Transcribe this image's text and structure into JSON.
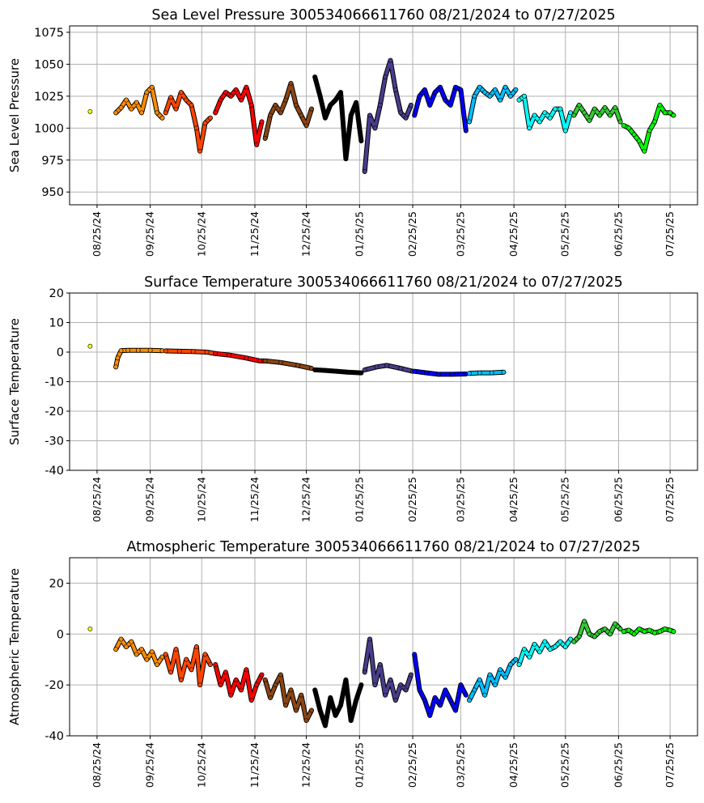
{
  "chart_data": [
    {
      "type": "scatter",
      "title": "Sea Level Pressure 300534066611760  08/21/2024 to 07/27/2025",
      "xlabel": "",
      "ylabel": "Sea Level Pressure",
      "xlim": [
        "2024-08-09",
        "2025-08-10"
      ],
      "ylim": [
        940,
        1080
      ],
      "yticks": [
        950,
        975,
        1000,
        1025,
        1050,
        1075
      ],
      "xticks": [
        "08/25/24",
        "09/25/24",
        "10/25/24",
        "11/25/24",
        "12/25/24",
        "01/25/25",
        "02/25/25",
        "03/25/25",
        "04/25/25",
        "05/25/25",
        "06/25/25",
        "07/25/25"
      ],
      "xtick_dates": [
        "2024-08-25",
        "2024-09-25",
        "2024-10-25",
        "2024-11-25",
        "2024-12-25",
        "2025-01-25",
        "2025-02-25",
        "2025-03-25",
        "2025-04-25",
        "2025-05-25",
        "2025-06-25",
        "2025-07-25"
      ],
      "grid": true,
      "series": [
        {
          "color": "#ffff00",
          "x": [
            "2024-08-21"
          ],
          "y": [
            1013
          ]
        },
        {
          "color": "#ff8c00",
          "x": [
            "2024-09-05",
            "2024-09-08",
            "2024-09-11",
            "2024-09-14",
            "2024-09-17",
            "2024-09-20",
            "2024-09-23",
            "2024-09-26",
            "2024-09-29",
            "2024-10-02"
          ],
          "y": [
            1012,
            1016,
            1022,
            1015,
            1020,
            1012,
            1028,
            1032,
            1012,
            1008
          ]
        },
        {
          "color": "#ff4500",
          "x": [
            "2024-10-04",
            "2024-10-07",
            "2024-10-10",
            "2024-10-13",
            "2024-10-16",
            "2024-10-19",
            "2024-10-22",
            "2024-10-24",
            "2024-10-27",
            "2024-10-30"
          ],
          "y": [
            1012,
            1024,
            1015,
            1028,
            1022,
            1018,
            1000,
            982,
            1004,
            1008
          ]
        },
        {
          "color": "#ff0000",
          "x": [
            "2024-11-02",
            "2024-11-05",
            "2024-11-08",
            "2024-11-11",
            "2024-11-14",
            "2024-11-17",
            "2024-11-20",
            "2024-11-23",
            "2024-11-26",
            "2024-11-29"
          ],
          "y": [
            1012,
            1022,
            1028,
            1025,
            1030,
            1022,
            1032,
            1018,
            987,
            1005
          ]
        },
        {
          "color": "#8b4513",
          "x": [
            "2024-12-01",
            "2024-12-04",
            "2024-12-07",
            "2024-12-10",
            "2024-12-13",
            "2024-12-16",
            "2024-12-19",
            "2024-12-22",
            "2024-12-25",
            "2024-12-28"
          ],
          "y": [
            992,
            1010,
            1018,
            1012,
            1022,
            1035,
            1018,
            1010,
            1002,
            1015
          ]
        },
        {
          "color": "#000000",
          "x": [
            "2024-12-30",
            "2025-01-02",
            "2025-01-05",
            "2025-01-08",
            "2025-01-11",
            "2025-01-14",
            "2025-01-17",
            "2025-01-20",
            "2025-01-23",
            "2025-01-26"
          ],
          "y": [
            1040,
            1025,
            1008,
            1018,
            1022,
            1028,
            976,
            1010,
            1020,
            990
          ]
        },
        {
          "color": "#483d8b",
          "x": [
            "2025-01-28",
            "2025-01-31",
            "2025-02-03",
            "2025-02-06",
            "2025-02-09",
            "2025-02-12",
            "2025-02-15",
            "2025-02-18",
            "2025-02-21",
            "2025-02-24"
          ],
          "y": [
            966,
            1010,
            1000,
            1018,
            1040,
            1053,
            1030,
            1012,
            1008,
            1018
          ]
        },
        {
          "color": "#0000ff",
          "x": [
            "2025-02-26",
            "2025-03-01",
            "2025-03-04",
            "2025-03-07",
            "2025-03-10",
            "2025-03-13",
            "2025-03-16",
            "2025-03-19",
            "2025-03-22",
            "2025-03-25",
            "2025-03-28"
          ],
          "y": [
            1010,
            1025,
            1030,
            1018,
            1028,
            1032,
            1022,
            1018,
            1032,
            1030,
            998
          ]
        },
        {
          "color": "#00bfff",
          "x": [
            "2025-03-30",
            "2025-04-02",
            "2025-04-05",
            "2025-04-08",
            "2025-04-11",
            "2025-04-14",
            "2025-04-17",
            "2025-04-20",
            "2025-04-23",
            "2025-04-26"
          ],
          "y": [
            1005,
            1025,
            1032,
            1028,
            1025,
            1030,
            1022,
            1032,
            1025,
            1030
          ]
        },
        {
          "color": "#00ffff",
          "x": [
            "2025-04-28",
            "2025-05-01",
            "2025-05-04",
            "2025-05-07",
            "2025-05-10",
            "2025-05-13",
            "2025-05-16",
            "2025-05-19",
            "2025-05-22",
            "2025-05-25",
            "2025-05-28"
          ],
          "y": [
            1022,
            1025,
            1000,
            1010,
            1005,
            1012,
            1008,
            1015,
            1015,
            998,
            1012
          ]
        },
        {
          "color": "#32cd32",
          "x": [
            "2025-05-30",
            "2025-06-02",
            "2025-06-05",
            "2025-06-08",
            "2025-06-11",
            "2025-06-14",
            "2025-06-17",
            "2025-06-20",
            "2025-06-23",
            "2025-06-26"
          ],
          "y": [
            1010,
            1018,
            1012,
            1006,
            1015,
            1010,
            1016,
            1010,
            1016,
            1005
          ]
        },
        {
          "color": "#00ff00",
          "x": [
            "2025-06-28",
            "2025-07-01",
            "2025-07-04",
            "2025-07-07",
            "2025-07-10",
            "2025-07-13",
            "2025-07-16",
            "2025-07-19",
            "2025-07-22",
            "2025-07-25",
            "2025-07-27"
          ],
          "y": [
            1002,
            1000,
            995,
            990,
            982,
            998,
            1005,
            1018,
            1012,
            1012,
            1010
          ]
        }
      ]
    },
    {
      "type": "scatter",
      "title": "Surface Temperature 300534066611760  08/21/2024 to 07/27/2025",
      "xlabel": "",
      "ylabel": "Surface Temperature",
      "xlim": [
        "2024-08-09",
        "2025-08-10"
      ],
      "ylim": [
        -40,
        20
      ],
      "yticks": [
        -40,
        -30,
        -20,
        -10,
        0,
        10,
        20
      ],
      "xticks": [
        "08/25/24",
        "09/25/24",
        "10/25/24",
        "11/25/24",
        "12/25/24",
        "01/25/25",
        "02/25/25",
        "03/25/25",
        "04/25/25",
        "05/25/25",
        "06/25/25",
        "07/25/25"
      ],
      "xtick_dates": [
        "2024-08-25",
        "2024-09-25",
        "2024-10-25",
        "2024-11-25",
        "2024-12-25",
        "2025-01-25",
        "2025-02-25",
        "2025-03-25",
        "2025-04-25",
        "2025-05-25",
        "2025-06-25",
        "2025-07-25"
      ],
      "grid": true,
      "series": [
        {
          "color": "#ffff00",
          "x": [
            "2024-08-21"
          ],
          "y": [
            2
          ]
        },
        {
          "color": "#ff8c00",
          "x": [
            "2024-09-05",
            "2024-09-06",
            "2024-09-08",
            "2024-09-12",
            "2024-09-18",
            "2024-09-25",
            "2024-10-02"
          ],
          "y": [
            -5,
            -2,
            0.5,
            0.6,
            0.6,
            0.6,
            0.5
          ]
        },
        {
          "color": "#ff4500",
          "x": [
            "2024-10-04",
            "2024-10-12",
            "2024-10-20",
            "2024-10-28",
            "2024-11-02"
          ],
          "y": [
            0.4,
            0.3,
            0.2,
            0,
            -0.5
          ]
        },
        {
          "color": "#ff0000",
          "x": [
            "2024-11-02",
            "2024-11-10",
            "2024-11-20",
            "2024-11-28",
            "2024-12-01"
          ],
          "y": [
            -0.5,
            -1,
            -2,
            -3,
            -3
          ]
        },
        {
          "color": "#8b4513",
          "x": [
            "2024-12-01",
            "2024-12-10",
            "2024-12-20",
            "2024-12-28"
          ],
          "y": [
            -3,
            -3.5,
            -4.5,
            -5.5
          ]
        },
        {
          "color": "#000000",
          "x": [
            "2024-12-30",
            "2025-01-05",
            "2025-01-12",
            "2025-01-18",
            "2025-01-26"
          ],
          "y": [
            -6,
            -6.2,
            -6.5,
            -6.8,
            -7
          ]
        },
        {
          "color": "#483d8b",
          "x": [
            "2025-01-28",
            "2025-02-04",
            "2025-02-10",
            "2025-02-18",
            "2025-02-25"
          ],
          "y": [
            -6,
            -5,
            -4.5,
            -5.5,
            -6.5
          ]
        },
        {
          "color": "#0000ff",
          "x": [
            "2025-02-26",
            "2025-03-05",
            "2025-03-12",
            "2025-03-20",
            "2025-03-28"
          ],
          "y": [
            -6.5,
            -7,
            -7.5,
            -7.5,
            -7.4
          ]
        },
        {
          "color": "#00bfff",
          "x": [
            "2025-03-30",
            "2025-04-05",
            "2025-04-12",
            "2025-04-19"
          ],
          "y": [
            -7.2,
            -7,
            -7,
            -6.8
          ]
        }
      ]
    },
    {
      "type": "scatter",
      "title": "Atmospheric Temperature 300534066611760  08/21/2024 to 07/27/2025",
      "xlabel": "",
      "ylabel": "Atmospheric Temperature",
      "xlim": [
        "2024-08-09",
        "2025-08-10"
      ],
      "ylim": [
        -40,
        30
      ],
      "yticks": [
        -40,
        -20,
        0,
        20
      ],
      "xticks": [
        "08/25/24",
        "09/25/24",
        "10/25/24",
        "11/25/24",
        "12/25/24",
        "01/25/25",
        "02/25/25",
        "03/25/25",
        "04/25/25",
        "05/25/25",
        "06/25/25",
        "07/25/25"
      ],
      "xtick_dates": [
        "2024-08-25",
        "2024-09-25",
        "2024-10-25",
        "2024-11-25",
        "2024-12-25",
        "2025-01-25",
        "2025-02-25",
        "2025-03-25",
        "2025-04-25",
        "2025-05-25",
        "2025-06-25",
        "2025-07-25"
      ],
      "grid": true,
      "series": [
        {
          "color": "#ffff00",
          "x": [
            "2024-08-21"
          ],
          "y": [
            2
          ]
        },
        {
          "color": "#ff8c00",
          "x": [
            "2024-09-05",
            "2024-09-08",
            "2024-09-11",
            "2024-09-14",
            "2024-09-17",
            "2024-09-20",
            "2024-09-23",
            "2024-09-26",
            "2024-09-29",
            "2024-10-02"
          ],
          "y": [
            -6,
            -2,
            -5,
            -3,
            -8,
            -6,
            -10,
            -7,
            -12,
            -9
          ]
        },
        {
          "color": "#ff4500",
          "x": [
            "2024-10-04",
            "2024-10-07",
            "2024-10-10",
            "2024-10-13",
            "2024-10-16",
            "2024-10-19",
            "2024-10-22",
            "2024-10-24",
            "2024-10-27",
            "2024-10-30"
          ],
          "y": [
            -8,
            -15,
            -6,
            -18,
            -10,
            -14,
            -5,
            -20,
            -8,
            -12
          ]
        },
        {
          "color": "#ff0000",
          "x": [
            "2024-11-02",
            "2024-11-05",
            "2024-11-08",
            "2024-11-11",
            "2024-11-14",
            "2024-11-17",
            "2024-11-20",
            "2024-11-23",
            "2024-11-26",
            "2024-11-29"
          ],
          "y": [
            -12,
            -20,
            -15,
            -24,
            -18,
            -22,
            -14,
            -26,
            -20,
            -16
          ]
        },
        {
          "color": "#8b4513",
          "x": [
            "2024-12-01",
            "2024-12-04",
            "2024-12-07",
            "2024-12-10",
            "2024-12-13",
            "2024-12-16",
            "2024-12-19",
            "2024-12-22",
            "2024-12-25",
            "2024-12-28"
          ],
          "y": [
            -18,
            -25,
            -20,
            -16,
            -28,
            -22,
            -30,
            -24,
            -34,
            -30
          ]
        },
        {
          "color": "#000000",
          "x": [
            "2024-12-30",
            "2025-01-02",
            "2025-01-05",
            "2025-01-08",
            "2025-01-11",
            "2025-01-14",
            "2025-01-17",
            "2025-01-20",
            "2025-01-23",
            "2025-01-26"
          ],
          "y": [
            -22,
            -30,
            -36,
            -25,
            -32,
            -28,
            -18,
            -34,
            -26,
            -20
          ]
        },
        {
          "color": "#483d8b",
          "x": [
            "2025-01-28",
            "2025-01-31",
            "2025-02-03",
            "2025-02-06",
            "2025-02-09",
            "2025-02-12",
            "2025-02-15",
            "2025-02-18",
            "2025-02-21",
            "2025-02-24"
          ],
          "y": [
            -15,
            -2,
            -20,
            -12,
            -24,
            -18,
            -26,
            -20,
            -22,
            -16
          ]
        },
        {
          "color": "#0000ff",
          "x": [
            "2025-02-26",
            "2025-03-01",
            "2025-03-04",
            "2025-03-07",
            "2025-03-10",
            "2025-03-13",
            "2025-03-16",
            "2025-03-19",
            "2025-03-22",
            "2025-03-25",
            "2025-03-28"
          ],
          "y": [
            -8,
            -22,
            -26,
            -32,
            -25,
            -28,
            -22,
            -26,
            -30,
            -20,
            -24
          ]
        },
        {
          "color": "#00bfff",
          "x": [
            "2025-03-30",
            "2025-04-02",
            "2025-04-05",
            "2025-04-08",
            "2025-04-11",
            "2025-04-14",
            "2025-04-17",
            "2025-04-20",
            "2025-04-23",
            "2025-04-26"
          ],
          "y": [
            -26,
            -22,
            -18,
            -24,
            -16,
            -20,
            -14,
            -17,
            -12,
            -10
          ]
        },
        {
          "color": "#00ffff",
          "x": [
            "2025-04-28",
            "2025-05-01",
            "2025-05-04",
            "2025-05-07",
            "2025-05-10",
            "2025-05-13",
            "2025-05-16",
            "2025-05-19",
            "2025-05-22",
            "2025-05-25",
            "2025-05-28"
          ],
          "y": [
            -12,
            -6,
            -9,
            -4,
            -7,
            -3,
            -6,
            -5,
            -3,
            -5,
            -2
          ]
        },
        {
          "color": "#32cd32",
          "x": [
            "2025-05-30",
            "2025-06-02",
            "2025-06-05",
            "2025-06-08",
            "2025-06-11",
            "2025-06-14",
            "2025-06-17",
            "2025-06-20",
            "2025-06-23",
            "2025-06-26"
          ],
          "y": [
            -3,
            -1,
            5,
            0,
            -1,
            1,
            2,
            0,
            4,
            2
          ]
        },
        {
          "color": "#00ff00",
          "x": [
            "2025-06-28",
            "2025-07-01",
            "2025-07-04",
            "2025-07-07",
            "2025-07-10",
            "2025-07-13",
            "2025-07-16",
            "2025-07-19",
            "2025-07-22",
            "2025-07-25",
            "2025-07-27"
          ],
          "y": [
            1,
            1.5,
            0,
            2,
            1,
            1.5,
            0.5,
            1,
            2,
            1.5,
            1
          ]
        }
      ]
    }
  ]
}
